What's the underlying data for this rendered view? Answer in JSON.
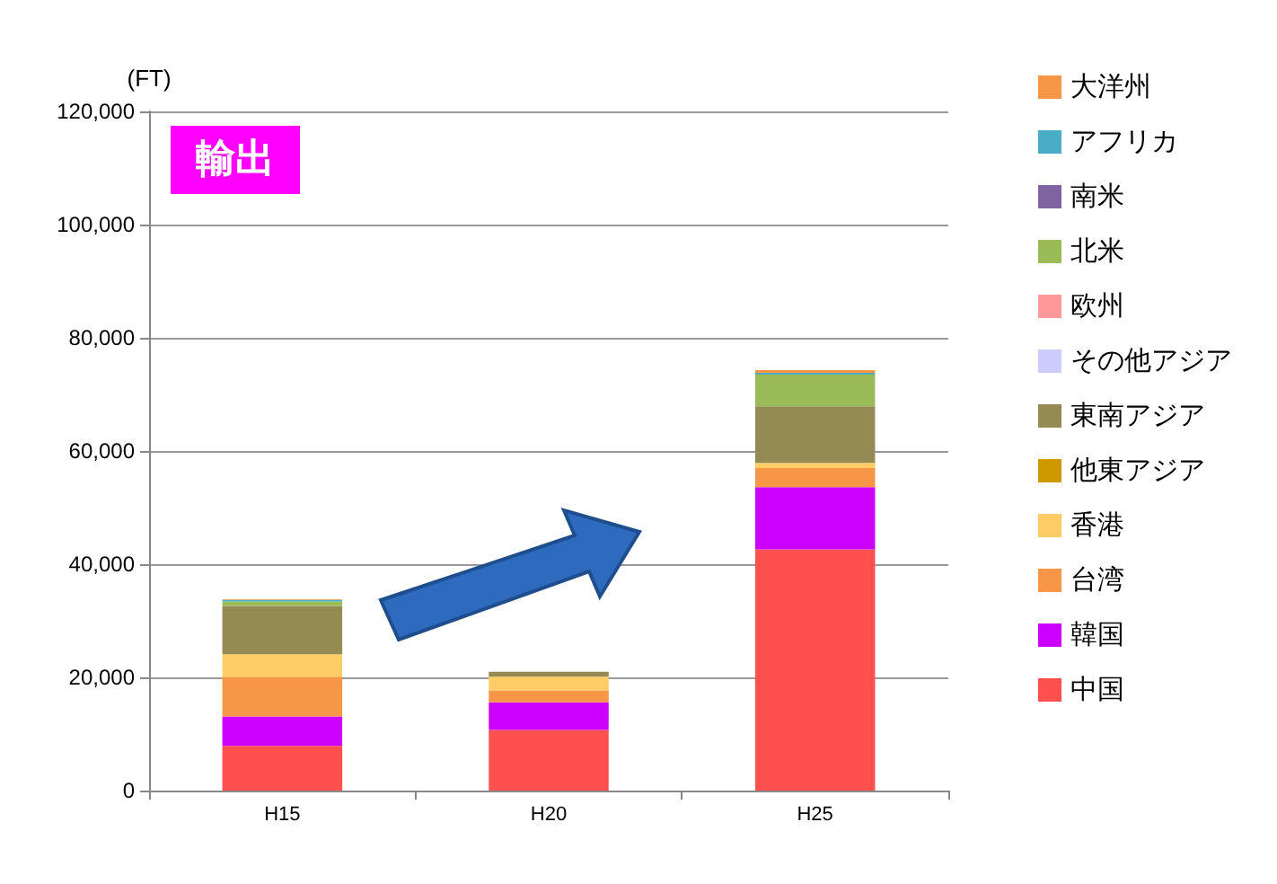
{
  "chart_data": {
    "type": "bar",
    "title": "輸出",
    "ylabel": "(FT)",
    "stacked": true,
    "categories": [
      "H15",
      "H20",
      "H25"
    ],
    "series": [
      {
        "name": "中国",
        "color": "#ff5050",
        "values": [
          7900,
          10700,
          42600
        ]
      },
      {
        "name": "韓国",
        "color": "#cc00ff",
        "values": [
          5200,
          4900,
          11000
        ]
      },
      {
        "name": "台湾",
        "color": "#f79646",
        "values": [
          7000,
          2100,
          3400
        ]
      },
      {
        "name": "香港",
        "color": "#ffcc66",
        "values": [
          4000,
          2400,
          900
        ]
      },
      {
        "name": "他東アジア",
        "color": "#cc9900",
        "values": [
          null,
          0,
          null
        ]
      },
      {
        "name": "東南アジア",
        "color": "#948a54",
        "values": [
          8500,
          900,
          10000
        ]
      },
      {
        "name": "その他アジア",
        "color": "#ccccff",
        "values": [
          null,
          0,
          null
        ]
      },
      {
        "name": "欧州",
        "color": "#ff9999",
        "values": [
          null,
          0,
          null
        ]
      },
      {
        "name": "北米",
        "color": "#9bbb59",
        "values": [
          800,
          0,
          5600
        ]
      },
      {
        "name": "南米",
        "color": "#8064a2",
        "values": [
          null,
          0,
          null
        ]
      },
      {
        "name": "アフリカ",
        "color": "#4bacc6",
        "values": [
          300,
          0,
          300
        ]
      },
      {
        "name": "大洋州",
        "color": "#f79646",
        "values": [
          100,
          0,
          500
        ]
      }
    ],
    "ylim": [
      0,
      120000
    ],
    "yticks": [
      {
        "value": 0,
        "label": "0"
      },
      {
        "value": 20000,
        "label": "20,000"
      },
      {
        "value": 40000,
        "label": "40,000"
      },
      {
        "value": 60000,
        "label": "60,000"
      },
      {
        "value": 80000,
        "label": "80,000"
      },
      {
        "value": 100000,
        "label": "100,000"
      },
      {
        "value": 120000,
        "label": "120,000"
      }
    ],
    "grid": "y",
    "legend": "right"
  }
}
